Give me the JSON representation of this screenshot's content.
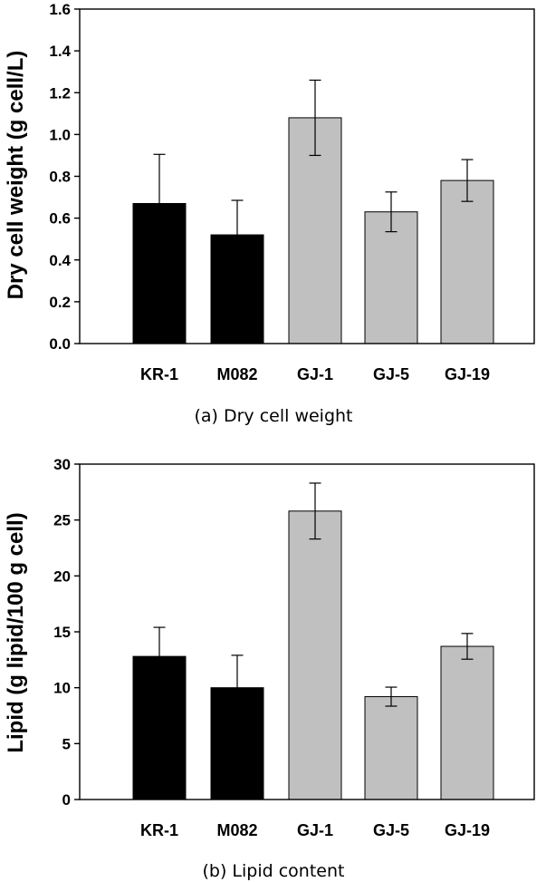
{
  "chart_data": [
    {
      "type": "bar",
      "categories": [
        "KR-1",
        "M082",
        "GJ-1",
        "GJ-5",
        "GJ-19"
      ],
      "values": [
        0.67,
        0.52,
        1.08,
        0.63,
        0.78
      ],
      "errors": [
        0.235,
        0.165,
        0.18,
        0.095,
        0.1
      ],
      "bar_colors": [
        "#000000",
        "#000000",
        "#c0c0c0",
        "#c0c0c0",
        "#c0c0c0"
      ],
      "ylabel": "Dry cell weight (g cell/L)",
      "ylim": [
        0,
        1.6
      ],
      "yticks": [
        "0.0",
        "0.2",
        "0.4",
        "0.6",
        "0.8",
        "1.0",
        "1.2",
        "1.4",
        "1.6"
      ],
      "caption": "(a) Dry cell weight",
      "grid": false
    },
    {
      "type": "bar",
      "categories": [
        "KR-1",
        "M082",
        "GJ-1",
        "GJ-5",
        "GJ-19"
      ],
      "values": [
        12.8,
        10.0,
        25.8,
        9.2,
        13.7
      ],
      "errors": [
        2.6,
        2.9,
        2.5,
        0.85,
        1.15
      ],
      "bar_colors": [
        "#000000",
        "#000000",
        "#c0c0c0",
        "#c0c0c0",
        "#c0c0c0"
      ],
      "ylabel": "Lipid (g lipid/100 g cell)",
      "ylim": [
        0,
        30
      ],
      "yticks": [
        "0",
        "5",
        "10",
        "15",
        "20",
        "25",
        "30"
      ],
      "caption": "(b) Lipid content",
      "grid": false
    }
  ]
}
